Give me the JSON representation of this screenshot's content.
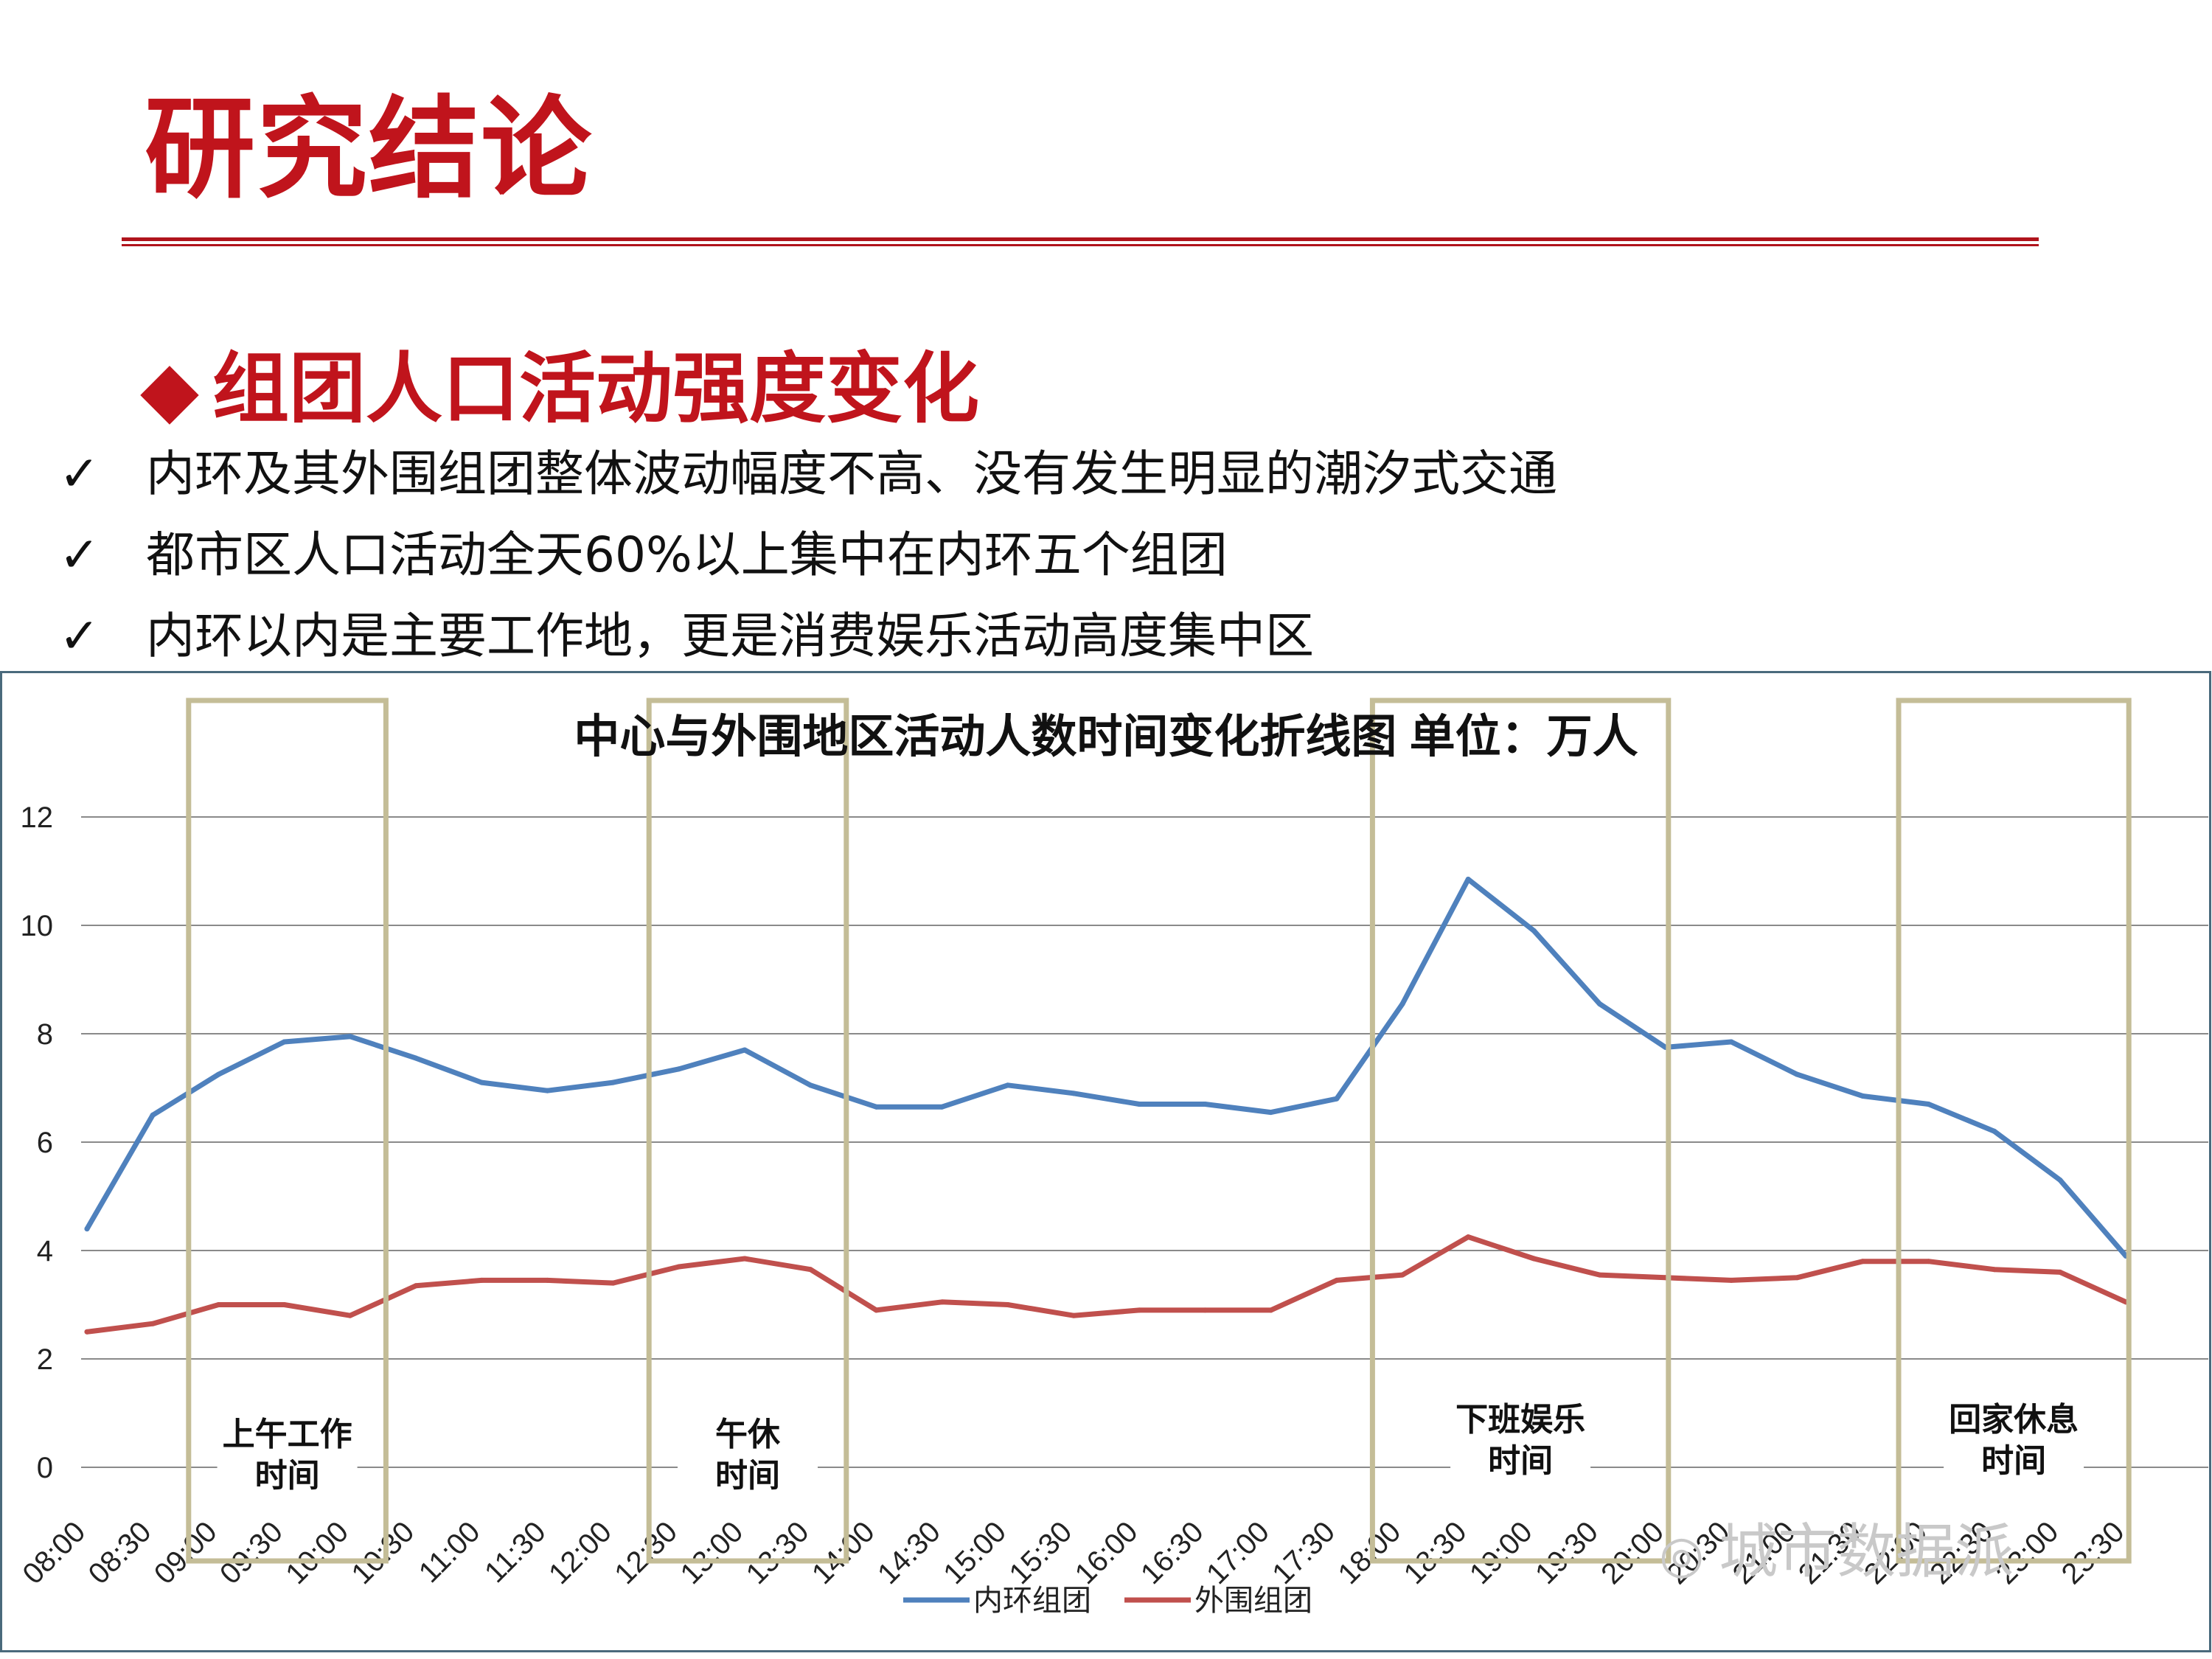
{
  "slide": {
    "title": "研究结论",
    "section_marker": "◆",
    "section_heading": "组团人口活动强度变化",
    "check_mark": "✓",
    "bullets": [
      "内环及其外围组团整体波动幅度不高、没有发生明显的潮汐式交通",
      "都市区人口活动全天60%以上集中在内环五个组团",
      "内环以内是主要工作地，更是消费娱乐活动高度集中区"
    ],
    "accent_color": "#c0141c"
  },
  "chart_data": {
    "type": "line",
    "title": "中心与外围地区活动人数时间变化折线图   单位：万人",
    "x": [
      "08:00",
      "08:30",
      "09:00",
      "09:30",
      "10:00",
      "10:30",
      "11:00",
      "11:30",
      "12:00",
      "12:30",
      "13:00",
      "13:30",
      "14:00",
      "14:30",
      "15:00",
      "15:30",
      "16:00",
      "16:30",
      "17:00",
      "17:30",
      "18:00",
      "18:30",
      "19:00",
      "19:30",
      "20:00",
      "20:30",
      "21:00",
      "21:30",
      "22:00",
      "22:30",
      "23:00",
      "23:30"
    ],
    "x_tick_labels": [
      "08:00",
      "08:30",
      "09:00",
      "09:30",
      "10:00",
      "10:30",
      "11:00",
      "11:30",
      "12:00",
      "12:30",
      "13:00",
      "13:30",
      "14:00",
      "14:30",
      "15:00",
      "15:30",
      "16:00",
      "16:30",
      "17:00",
      "17:30",
      "18:00",
      "18:30",
      "19:00",
      "19:30",
      "20:00",
      "20:30",
      "21:00",
      "21:30",
      "22:00",
      "22:30",
      "23:00",
      "23:30"
    ],
    "series": [
      {
        "name": "内环组团",
        "color": "#4f81bd",
        "values": [
          4.4,
          6.5,
          7.25,
          7.85,
          7.95,
          7.55,
          7.1,
          6.95,
          7.1,
          7.35,
          7.7,
          7.05,
          6.65,
          6.65,
          7.05,
          6.9,
          6.7,
          6.7,
          6.55,
          6.8,
          8.55,
          10.85,
          9.9,
          8.55,
          7.75,
          7.85,
          7.25,
          6.85,
          6.7,
          6.2,
          5.3,
          3.9
        ]
      },
      {
        "name": "外围组团",
        "color": "#c0504d",
        "values": [
          2.5,
          2.65,
          3.0,
          3.0,
          2.8,
          3.35,
          3.45,
          3.45,
          3.4,
          3.7,
          3.85,
          3.65,
          2.9,
          3.05,
          3.0,
          2.8,
          2.9,
          2.9,
          2.9,
          3.45,
          3.55,
          4.25,
          3.85,
          3.55,
          3.5,
          3.45,
          3.5,
          3.8,
          3.8,
          3.65,
          3.6,
          3.05
        ]
      }
    ],
    "y_ticks": [
      0,
      2,
      4,
      6,
      8,
      10,
      12
    ],
    "ylim": [
      0,
      14
    ],
    "grid": true,
    "legend_position": "bottom",
    "highlight_periods": [
      {
        "label_line1": "上午工作",
        "label_line2": "时间",
        "start_index": 1.5,
        "end_index": 4.5
      },
      {
        "label_line1": "午休",
        "label_line2": "时间",
        "start_index": 8.5,
        "end_index": 11.5
      },
      {
        "label_line1": "下班娱乐",
        "label_line2": "时间",
        "start_index": 19.5,
        "end_index": 24.0
      },
      {
        "label_line1": "回家休息",
        "label_line2": "时间",
        "start_index": 27.5,
        "end_index": 31.0
      }
    ],
    "highlight_color": "#c4bd97"
  },
  "watermark": {
    "icon": "wechat-icon",
    "text": "城市数据派"
  }
}
